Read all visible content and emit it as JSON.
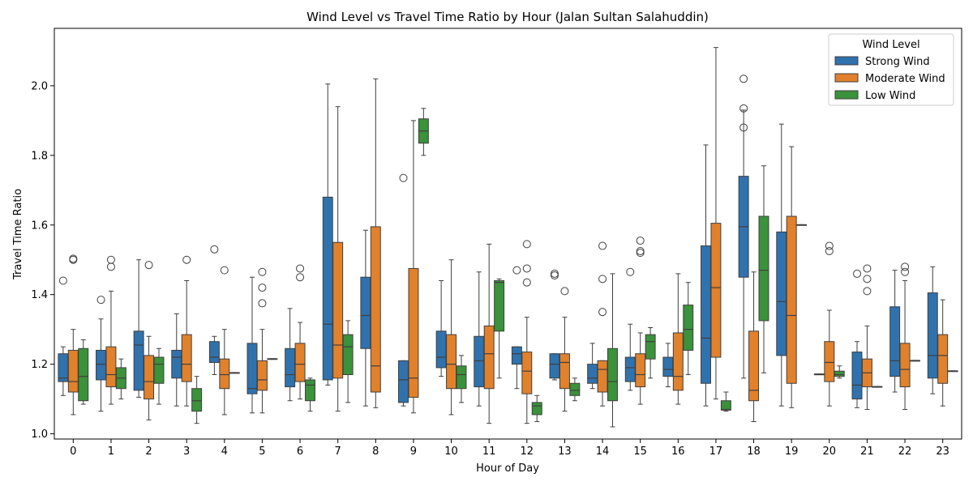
{
  "chart_data": {
    "type": "box",
    "title": "Wind Level vs Travel Time Ratio by Hour (Jalan Sultan Salahuddin)",
    "xlabel": "Hour of Day",
    "ylabel": "Travel Time Ratio",
    "ylim": [
      0.985,
      2.165
    ],
    "yticks": [
      1.0,
      1.2,
      1.4,
      1.6,
      1.8,
      2.0
    ],
    "categories": [
      "0",
      "1",
      "2",
      "3",
      "4",
      "5",
      "6",
      "7",
      "8",
      "9",
      "10",
      "11",
      "12",
      "13",
      "14",
      "15",
      "16",
      "17",
      "18",
      "19",
      "20",
      "21",
      "22",
      "23"
    ],
    "legend": {
      "title": "Wind Level",
      "placement": "top-right"
    },
    "series": [
      {
        "name": "Strong Wind",
        "color": "#2f72ae",
        "boxes": [
          {
            "whislo": 1.11,
            "q1": 1.15,
            "med": 1.16,
            "q3": 1.23,
            "whishi": 1.25,
            "fliers": [
              1.44
            ]
          },
          {
            "whislo": 1.065,
            "q1": 1.155,
            "med": 1.2,
            "q3": 1.24,
            "whishi": 1.33,
            "fliers": [
              1.385
            ]
          },
          {
            "whislo": 1.105,
            "q1": 1.125,
            "med": 1.255,
            "q3": 1.295,
            "whishi": 1.5,
            "fliers": []
          },
          {
            "whislo": 1.08,
            "q1": 1.16,
            "med": 1.22,
            "q3": 1.24,
            "whishi": 1.345,
            "fliers": []
          },
          {
            "whislo": 1.17,
            "q1": 1.205,
            "med": 1.22,
            "q3": 1.265,
            "whishi": 1.28,
            "fliers": [
              1.53
            ]
          },
          {
            "whislo": 1.06,
            "q1": 1.115,
            "med": 1.13,
            "q3": 1.26,
            "whishi": 1.45,
            "fliers": []
          },
          {
            "whislo": 1.095,
            "q1": 1.135,
            "med": 1.17,
            "q3": 1.245,
            "whishi": 1.36,
            "fliers": []
          },
          {
            "whislo": 1.14,
            "q1": 1.155,
            "med": 1.315,
            "q3": 1.68,
            "whishi": 2.005,
            "fliers": []
          },
          {
            "whislo": 1.08,
            "q1": 1.245,
            "med": 1.34,
            "q3": 1.45,
            "whishi": 1.585,
            "fliers": []
          },
          {
            "whislo": 1.08,
            "q1": 1.09,
            "med": 1.155,
            "q3": 1.21,
            "whishi": 1.21,
            "fliers": [
              1.735
            ]
          },
          {
            "whislo": 1.165,
            "q1": 1.19,
            "med": 1.22,
            "q3": 1.295,
            "whishi": 1.44,
            "fliers": []
          },
          {
            "whislo": 1.08,
            "q1": 1.135,
            "med": 1.21,
            "q3": 1.28,
            "whishi": 1.465,
            "fliers": []
          },
          {
            "whislo": 1.13,
            "q1": 1.2,
            "med": 1.23,
            "q3": 1.25,
            "whishi": 1.25,
            "fliers": [
              1.47
            ]
          },
          {
            "whislo": 1.155,
            "q1": 1.16,
            "med": 1.2,
            "q3": 1.23,
            "whishi": 1.23,
            "fliers": [
              1.455,
              1.46
            ]
          },
          {
            "whislo": 1.13,
            "q1": 1.145,
            "med": 1.16,
            "q3": 1.2,
            "whishi": 1.26,
            "fliers": []
          },
          {
            "whislo": 1.125,
            "q1": 1.15,
            "med": 1.19,
            "q3": 1.22,
            "whishi": 1.315,
            "fliers": [
              1.465
            ]
          },
          {
            "whislo": 1.135,
            "q1": 1.165,
            "med": 1.185,
            "q3": 1.22,
            "whishi": 1.26,
            "fliers": []
          },
          {
            "whislo": 1.08,
            "q1": 1.145,
            "med": 1.275,
            "q3": 1.54,
            "whishi": 1.83,
            "fliers": []
          },
          {
            "whislo": 1.16,
            "q1": 1.45,
            "med": 1.595,
            "q3": 1.74,
            "whishi": 1.93,
            "fliers": [
              1.88,
              1.935,
              2.02
            ]
          },
          {
            "whislo": 1.08,
            "q1": 1.225,
            "med": 1.38,
            "q3": 1.58,
            "whishi": 1.89,
            "fliers": []
          },
          {
            "whislo": 1.17,
            "q1": 1.17,
            "med": 1.17,
            "q3": 1.172,
            "whishi": 1.172,
            "fliers": []
          },
          {
            "whislo": 1.075,
            "q1": 1.1,
            "med": 1.14,
            "q3": 1.235,
            "whishi": 1.265,
            "fliers": [
              1.46
            ]
          },
          {
            "whislo": 1.12,
            "q1": 1.165,
            "med": 1.21,
            "q3": 1.365,
            "whishi": 1.47,
            "fliers": []
          },
          {
            "whislo": 1.115,
            "q1": 1.16,
            "med": 1.225,
            "q3": 1.405,
            "whishi": 1.48,
            "fliers": []
          }
        ]
      },
      {
        "name": "Moderate Wind",
        "color": "#e1812c",
        "boxes": [
          {
            "whislo": 1.055,
            "q1": 1.12,
            "med": 1.15,
            "q3": 1.24,
            "whishi": 1.3,
            "fliers": [
              1.5,
              1.503
            ]
          },
          {
            "whislo": 1.085,
            "q1": 1.135,
            "med": 1.17,
            "q3": 1.25,
            "whishi": 1.41,
            "fliers": [
              1.48,
              1.5
            ]
          },
          {
            "whislo": 1.04,
            "q1": 1.1,
            "med": 1.15,
            "q3": 1.225,
            "whishi": 1.28,
            "fliers": [
              1.485
            ]
          },
          {
            "whislo": 1.08,
            "q1": 1.15,
            "med": 1.2,
            "q3": 1.285,
            "whishi": 1.44,
            "fliers": [
              1.5
            ]
          },
          {
            "whislo": 1.055,
            "q1": 1.13,
            "med": 1.17,
            "q3": 1.215,
            "whishi": 1.3,
            "fliers": [
              1.47
            ]
          },
          {
            "whislo": 1.06,
            "q1": 1.125,
            "med": 1.155,
            "q3": 1.21,
            "whishi": 1.3,
            "fliers": [
              1.375,
              1.42,
              1.465
            ]
          },
          {
            "whislo": 1.1,
            "q1": 1.15,
            "med": 1.2,
            "q3": 1.26,
            "whishi": 1.32,
            "fliers": [
              1.45,
              1.475
            ]
          },
          {
            "whislo": 1.065,
            "q1": 1.16,
            "med": 1.255,
            "q3": 1.55,
            "whishi": 1.94,
            "fliers": []
          },
          {
            "whislo": 1.075,
            "q1": 1.12,
            "med": 1.195,
            "q3": 1.595,
            "whishi": 2.02,
            "fliers": []
          },
          {
            "whislo": 1.06,
            "q1": 1.105,
            "med": 1.16,
            "q3": 1.475,
            "whishi": 1.9,
            "fliers": []
          },
          {
            "whislo": 1.055,
            "q1": 1.13,
            "med": 1.2,
            "q3": 1.285,
            "whishi": 1.5,
            "fliers": []
          },
          {
            "whislo": 1.03,
            "q1": 1.13,
            "med": 1.23,
            "q3": 1.31,
            "whishi": 1.545,
            "fliers": []
          },
          {
            "whislo": 1.03,
            "q1": 1.115,
            "med": 1.18,
            "q3": 1.235,
            "whishi": 1.335,
            "fliers": [
              1.435,
              1.475,
              1.545
            ]
          },
          {
            "whislo": 1.065,
            "q1": 1.13,
            "med": 1.205,
            "q3": 1.23,
            "whishi": 1.335,
            "fliers": [
              1.41
            ]
          },
          {
            "whislo": 1.08,
            "q1": 1.12,
            "med": 1.185,
            "q3": 1.21,
            "whishi": 1.21,
            "fliers": [
              1.35,
              1.445,
              1.54
            ]
          },
          {
            "whislo": 1.085,
            "q1": 1.135,
            "med": 1.17,
            "q3": 1.23,
            "whishi": 1.29,
            "fliers": [
              1.52,
              1.525,
              1.555
            ]
          },
          {
            "whislo": 1.085,
            "q1": 1.125,
            "med": 1.165,
            "q3": 1.29,
            "whishi": 1.46,
            "fliers": []
          },
          {
            "whislo": 1.1,
            "q1": 1.22,
            "med": 1.42,
            "q3": 1.605,
            "whishi": 2.11,
            "fliers": []
          },
          {
            "whislo": 1.035,
            "q1": 1.095,
            "med": 1.125,
            "q3": 1.295,
            "whishi": 1.465,
            "fliers": []
          },
          {
            "whislo": 1.075,
            "q1": 1.145,
            "med": 1.34,
            "q3": 1.625,
            "whishi": 1.825,
            "fliers": []
          },
          {
            "whislo": 1.08,
            "q1": 1.15,
            "med": 1.205,
            "q3": 1.265,
            "whishi": 1.355,
            "fliers": [
              1.525,
              1.54
            ]
          },
          {
            "whislo": 1.07,
            "q1": 1.135,
            "med": 1.175,
            "q3": 1.215,
            "whishi": 1.31,
            "fliers": [
              1.41,
              1.445,
              1.475
            ]
          },
          {
            "whislo": 1.07,
            "q1": 1.135,
            "med": 1.185,
            "q3": 1.26,
            "whishi": 1.44,
            "fliers": [
              1.465,
              1.48
            ]
          },
          {
            "whislo": 1.08,
            "q1": 1.145,
            "med": 1.225,
            "q3": 1.285,
            "whishi": 1.385,
            "fliers": []
          }
        ]
      },
      {
        "name": "Low Wind",
        "color": "#3a923a",
        "boxes": [
          {
            "whislo": 1.085,
            "q1": 1.095,
            "med": 1.165,
            "q3": 1.245,
            "whishi": 1.27,
            "fliers": []
          },
          {
            "whislo": 1.1,
            "q1": 1.13,
            "med": 1.16,
            "q3": 1.19,
            "whishi": 1.215,
            "fliers": []
          },
          {
            "whislo": 1.085,
            "q1": 1.145,
            "med": 1.2,
            "q3": 1.22,
            "whishi": 1.245,
            "fliers": []
          },
          {
            "whislo": 1.03,
            "q1": 1.065,
            "med": 1.095,
            "q3": 1.13,
            "whishi": 1.165,
            "fliers": []
          },
          {
            "whislo": 1.175,
            "q1": 1.175,
            "med": 1.175,
            "q3": 1.176,
            "whishi": 1.176,
            "fliers": []
          },
          {
            "whislo": 1.215,
            "q1": 1.215,
            "med": 1.215,
            "q3": 1.216,
            "whishi": 1.216,
            "fliers": []
          },
          {
            "whislo": 1.065,
            "q1": 1.095,
            "med": 1.14,
            "q3": 1.155,
            "whishi": 1.16,
            "fliers": []
          },
          {
            "whislo": 1.09,
            "q1": 1.17,
            "med": 1.25,
            "q3": 1.285,
            "whishi": 1.325,
            "fliers": []
          },
          null,
          {
            "whislo": 1.8,
            "q1": 1.835,
            "med": 1.87,
            "q3": 1.905,
            "whishi": 1.935,
            "fliers": []
          },
          {
            "whislo": 1.09,
            "q1": 1.13,
            "med": 1.17,
            "q3": 1.195,
            "whishi": 1.225,
            "fliers": []
          },
          {
            "whislo": 1.16,
            "q1": 1.295,
            "med": 1.435,
            "q3": 1.44,
            "whishi": 1.445,
            "fliers": []
          },
          {
            "whislo": 1.035,
            "q1": 1.055,
            "med": 1.08,
            "q3": 1.09,
            "whishi": 1.11,
            "fliers": []
          },
          {
            "whislo": 1.095,
            "q1": 1.11,
            "med": 1.125,
            "q3": 1.145,
            "whishi": 1.16,
            "fliers": []
          },
          {
            "whislo": 1.02,
            "q1": 1.095,
            "med": 1.15,
            "q3": 1.245,
            "whishi": 1.46,
            "fliers": []
          },
          {
            "whislo": 1.16,
            "q1": 1.215,
            "med": 1.265,
            "q3": 1.285,
            "whishi": 1.305,
            "fliers": []
          },
          {
            "whislo": 1.17,
            "q1": 1.24,
            "med": 1.3,
            "q3": 1.37,
            "whishi": 1.435,
            "fliers": []
          },
          {
            "whislo": 1.065,
            "q1": 1.068,
            "med": 1.07,
            "q3": 1.095,
            "whishi": 1.12,
            "fliers": []
          },
          {
            "whislo": 1.175,
            "q1": 1.325,
            "med": 1.47,
            "q3": 1.625,
            "whishi": 1.77,
            "fliers": []
          },
          {
            "whislo": 1.6,
            "q1": 1.6,
            "med": 1.6,
            "q3": 1.601,
            "whishi": 1.601,
            "fliers": []
          },
          {
            "whislo": 1.16,
            "q1": 1.165,
            "med": 1.17,
            "q3": 1.18,
            "whishi": 1.195,
            "fliers": []
          },
          {
            "whislo": 1.135,
            "q1": 1.135,
            "med": 1.135,
            "q3": 1.136,
            "whishi": 1.136,
            "fliers": []
          },
          {
            "whislo": 1.21,
            "q1": 1.21,
            "med": 1.21,
            "q3": 1.211,
            "whishi": 1.211,
            "fliers": []
          },
          {
            "whislo": 1.18,
            "q1": 1.18,
            "med": 1.18,
            "q3": 1.181,
            "whishi": 1.181,
            "fliers": []
          }
        ]
      }
    ]
  }
}
